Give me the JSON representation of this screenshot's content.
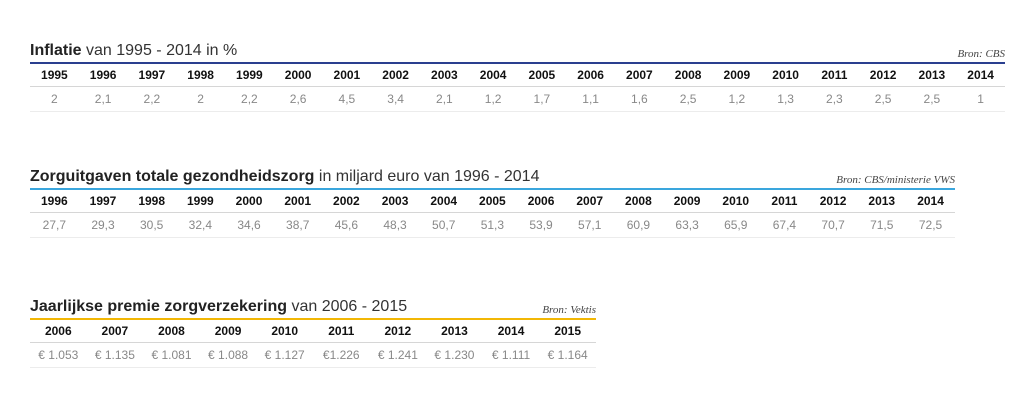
{
  "tables": [
    {
      "title_bold": "Inflatie",
      "title_rest": " van 1995 - 2014 in %",
      "source": "Bron: CBS",
      "rule_color": "#2a3f8f",
      "years": [
        "1995",
        "1996",
        "1997",
        "1998",
        "1999",
        "2000",
        "2001",
        "2002",
        "2003",
        "2004",
        "2005",
        "2006",
        "2007",
        "2008",
        "2009",
        "2010",
        "2011",
        "2012",
        "2013",
        "2014"
      ],
      "values": [
        "2",
        "2,1",
        "2,2",
        "2",
        "2,2",
        "2,6",
        "4,5",
        "3,4",
        "2,1",
        "1,2",
        "1,7",
        "1,1",
        "1,6",
        "2,5",
        "1,2",
        "1,3",
        "2,3",
        "2,5",
        "2,5",
        "1"
      ]
    },
    {
      "title_bold": "Zorguitgaven totale gezondheidszorg",
      "title_rest": " in miljard euro van 1996 - 2014",
      "source": "Bron: CBS/ministerie VWS",
      "rule_color": "#3aa6dd",
      "years": [
        "1996",
        "1997",
        "1998",
        "1999",
        "2000",
        "2001",
        "2002",
        "2003",
        "2004",
        "2005",
        "2006",
        "2007",
        "2008",
        "2009",
        "2010",
        "2011",
        "2012",
        "2013",
        "2014"
      ],
      "values": [
        "27,7",
        "29,3",
        "30,5",
        "32,4",
        "34,6",
        "38,7",
        "45,6",
        "48,3",
        "50,7",
        "51,3",
        "53,9",
        "57,1",
        "60,9",
        "63,3",
        "65,9",
        "67,4",
        "70,7",
        "71,5",
        "72,5"
      ]
    },
    {
      "title_bold": "Jaarlijkse premie zorgverzekering",
      "title_rest": " van 2006 - 2015",
      "source": "Bron: Vektis",
      "rule_color": "#f2b705",
      "years": [
        "2006",
        "2007",
        "2008",
        "2009",
        "2010",
        "2011",
        "2012",
        "2013",
        "2014",
        "2015"
      ],
      "values": [
        "€ 1.053",
        "€ 1.135",
        "€ 1.081",
        "€ 1.088",
        "€ 1.127",
        "€1.226",
        "€ 1.241",
        "€ 1.230",
        "€ 1.111",
        "€ 1.164"
      ]
    }
  ]
}
